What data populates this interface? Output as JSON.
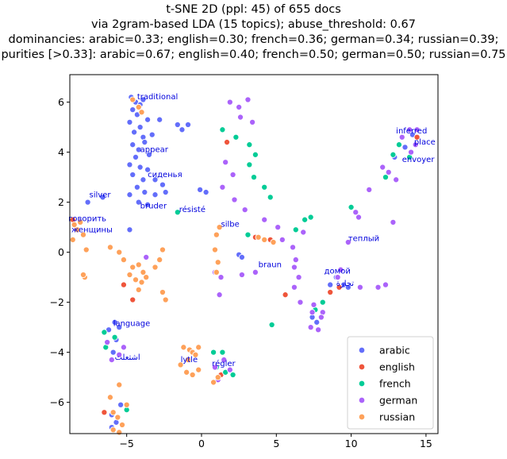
{
  "chart_data": {
    "type": "scatter",
    "title_lines": [
      "t-SNE 2D (ppl: 45) of 655 docs",
      "via 2gram-based LDA (15 topics); abuse_threshold: 0.67",
      "dominancies: arabic=0.33; english=0.30; french=0.36; german=0.34; russian=0.39;",
      "purities [>0.33]: arabic=0.67; english=0.40; french=0.50; german=0.50; russian=0.75"
    ],
    "xlabel": "",
    "ylabel": "",
    "xlim": [
      -8.8,
      15.8
    ],
    "ylim": [
      -7.25,
      7.1
    ],
    "xticks": [
      -5,
      0,
      5,
      10,
      15
    ],
    "yticks": [
      -6,
      -4,
      -2,
      0,
      2,
      4,
      6
    ],
    "grid": false,
    "legend_position": "lower-right",
    "series": [
      {
        "name": "arabic",
        "color": "#636efa",
        "points": [
          [
            -4.7,
            6.2
          ],
          [
            -4.4,
            6.0
          ],
          [
            -4.1,
            5.9
          ],
          [
            -3.9,
            6.1
          ],
          [
            -4.6,
            5.7
          ],
          [
            -4.3,
            5.5
          ],
          [
            -3.6,
            5.3
          ],
          [
            -4.8,
            5.2
          ],
          [
            -4.1,
            5.0
          ],
          [
            -2.8,
            5.3
          ],
          [
            -4.5,
            4.8
          ],
          [
            -3.9,
            4.6
          ],
          [
            -3.3,
            4.7
          ],
          [
            -4.6,
            4.3
          ],
          [
            -4.2,
            4.1
          ],
          [
            -3.8,
            4.4
          ],
          [
            -4.4,
            3.8
          ],
          [
            -3.5,
            3.9
          ],
          [
            -4.8,
            3.5
          ],
          [
            -4.1,
            3.4
          ],
          [
            -3.6,
            3.3
          ],
          [
            -4.6,
            3.1
          ],
          [
            -3.9,
            2.9
          ],
          [
            -3.1,
            2.9
          ],
          [
            -4.3,
            2.6
          ],
          [
            -3.8,
            2.4
          ],
          [
            -2.6,
            2.7
          ],
          [
            -4.8,
            2.3
          ],
          [
            -3.1,
            2.3
          ],
          [
            -2.4,
            2.4
          ],
          [
            -4.2,
            2.0
          ],
          [
            -3.6,
            1.9
          ],
          [
            -1.6,
            5.1
          ],
          [
            -1.3,
            4.9
          ],
          [
            -0.9,
            5.1
          ],
          [
            -0.1,
            2.5
          ],
          [
            0.3,
            2.4
          ],
          [
            -6.6,
            2.2
          ],
          [
            -7.6,
            2.0
          ],
          [
            -4.8,
            0.9
          ],
          [
            -5.8,
            -2.8
          ],
          [
            -5.5,
            -3.0
          ],
          [
            -6.2,
            -3.1
          ],
          [
            -5.7,
            -3.5
          ],
          [
            -5.9,
            -4.0
          ],
          [
            -5.4,
            -6.1
          ],
          [
            -6.0,
            -6.5
          ],
          [
            -5.7,
            -6.8
          ],
          [
            -6.0,
            -7.0
          ],
          [
            7.4,
            -2.6
          ],
          [
            7.7,
            -2.8
          ],
          [
            9.0,
            -1.0
          ],
          [
            9.5,
            -1.3
          ],
          [
            13.6,
            4.2
          ],
          [
            14.1,
            4.7
          ],
          [
            12.9,
            3.8
          ],
          [
            2.5,
            -0.1
          ],
          [
            2.7,
            -0.2
          ],
          [
            8.6,
            -1.3
          ],
          [
            9.8,
            -1.4
          ]
        ]
      },
      {
        "name": "english",
        "color": "#ef553b",
        "points": [
          [
            -5.2,
            -1.3
          ],
          [
            -4.6,
            -1.9
          ],
          [
            1.7,
            4.4
          ],
          [
            3.6,
            0.6
          ],
          [
            4.6,
            0.5
          ],
          [
            5.6,
            -1.7
          ],
          [
            1.3,
            -4.9
          ],
          [
            -6.5,
            -6.4
          ],
          [
            14.4,
            4.6
          ],
          [
            8.6,
            -1.6
          ],
          [
            -8.6,
            1.3
          ],
          [
            9.2,
            -1.4
          ]
        ]
      },
      {
        "name": "french",
        "color": "#00cc96",
        "points": [
          [
            1.4,
            4.9
          ],
          [
            2.3,
            4.6
          ],
          [
            3.2,
            4.3
          ],
          [
            3.6,
            3.9
          ],
          [
            3.2,
            3.5
          ],
          [
            3.5,
            3.0
          ],
          [
            4.2,
            2.6
          ],
          [
            4.6,
            2.2
          ],
          [
            6.9,
            1.3
          ],
          [
            7.3,
            1.4
          ],
          [
            6.3,
            0.9
          ],
          [
            10.0,
            1.8
          ],
          [
            12.8,
            3.9
          ],
          [
            13.2,
            4.3
          ],
          [
            13.9,
            3.8
          ],
          [
            12.3,
            3.0
          ],
          [
            3.1,
            0.7
          ],
          [
            -1.6,
            1.6
          ],
          [
            0.8,
            -4.0
          ],
          [
            1.4,
            -4.0
          ],
          [
            1.0,
            -4.6
          ],
          [
            1.6,
            -4.8
          ],
          [
            -6.5,
            -3.2
          ],
          [
            -5.8,
            -3.4
          ],
          [
            -6.4,
            -3.8
          ],
          [
            -5.0,
            -6.3
          ],
          [
            8.1,
            -2.0
          ],
          [
            7.6,
            -2.3
          ],
          [
            4.7,
            -2.9
          ],
          [
            2.1,
            -4.9
          ]
        ]
      },
      {
        "name": "german",
        "color": "#ab63fa",
        "points": [
          [
            1.9,
            6.0
          ],
          [
            2.5,
            5.8
          ],
          [
            3.1,
            6.1
          ],
          [
            2.6,
            5.4
          ],
          [
            3.4,
            5.2
          ],
          [
            1.6,
            3.6
          ],
          [
            2.1,
            3.1
          ],
          [
            1.4,
            2.6
          ],
          [
            2.2,
            2.1
          ],
          [
            2.9,
            1.7
          ],
          [
            4.2,
            1.3
          ],
          [
            5.1,
            1.0
          ],
          [
            6.8,
            0.8
          ],
          [
            5.4,
            0.5
          ],
          [
            6.1,
            0.2
          ],
          [
            6.3,
            -0.3
          ],
          [
            6.2,
            -0.6
          ],
          [
            6.5,
            -1.0
          ],
          [
            6.2,
            -1.4
          ],
          [
            6.6,
            -2.0
          ],
          [
            7.5,
            -2.1
          ],
          [
            8.1,
            -2.4
          ],
          [
            7.3,
            -3.0
          ],
          [
            7.8,
            -3.1
          ],
          [
            10.3,
            1.6
          ],
          [
            10.5,
            1.4
          ],
          [
            11.2,
            2.5
          ],
          [
            12.1,
            3.4
          ],
          [
            12.5,
            3.2
          ],
          [
            13.0,
            2.9
          ],
          [
            13.4,
            4.6
          ],
          [
            13.9,
            4.9
          ],
          [
            14.4,
            4.9
          ],
          [
            14.3,
            4.3
          ],
          [
            14.0,
            4.0
          ],
          [
            12.8,
            1.2
          ],
          [
            11.8,
            -1.4
          ],
          [
            12.3,
            -1.3
          ],
          [
            10.6,
            -1.4
          ],
          [
            9.1,
            -1.0
          ],
          [
            9.8,
            0.4
          ],
          [
            -3.7,
            -0.2
          ],
          [
            -5.2,
            -3.8
          ],
          [
            -5.5,
            -4.1
          ],
          [
            -6.0,
            -4.3
          ],
          [
            -6.3,
            -3.6
          ],
          [
            0.9,
            -0.8
          ],
          [
            1.3,
            -1.0
          ],
          [
            1.2,
            -1.7
          ],
          [
            2.7,
            -0.9
          ],
          [
            3.6,
            -0.8
          ],
          [
            1.5,
            -4.3
          ],
          [
            1.9,
            -4.7
          ],
          [
            1.1,
            -5.1
          ],
          [
            0.9,
            -4.6
          ],
          [
            9.3,
            -0.7
          ],
          [
            7.4,
            -2.4
          ],
          [
            8.0,
            -2.6
          ]
        ]
      },
      {
        "name": "russian",
        "color": "#fea15a",
        "points": [
          [
            -4.6,
            6.1
          ],
          [
            -4.2,
            5.8
          ],
          [
            -4.0,
            5.6
          ],
          [
            -8.5,
            1.1
          ],
          [
            -8.3,
            0.9
          ],
          [
            -8.1,
            1.2
          ],
          [
            -7.9,
            0.7
          ],
          [
            -8.6,
            0.5
          ],
          [
            -7.7,
            0.1
          ],
          [
            -6.1,
            0.2
          ],
          [
            -5.5,
            0.0
          ],
          [
            -5.2,
            -0.3
          ],
          [
            -4.6,
            -0.6
          ],
          [
            -4.2,
            -0.5
          ],
          [
            -3.9,
            -0.8
          ],
          [
            -4.8,
            -0.9
          ],
          [
            -4.4,
            -1.1
          ],
          [
            -4.0,
            -1.2
          ],
          [
            -4.2,
            -1.5
          ],
          [
            -3.7,
            -1.0
          ],
          [
            -2.6,
            0.1
          ],
          [
            -2.8,
            -0.3
          ],
          [
            -3.1,
            -0.6
          ],
          [
            -2.6,
            -1.6
          ],
          [
            -2.4,
            -1.9
          ],
          [
            1.2,
            1.0
          ],
          [
            1.0,
            0.7
          ],
          [
            0.9,
            0.1
          ],
          [
            1.1,
            -0.4
          ],
          [
            1.0,
            -0.8
          ],
          [
            3.8,
            0.6
          ],
          [
            4.2,
            0.5
          ],
          [
            4.8,
            0.4
          ],
          [
            -1.2,
            -3.8
          ],
          [
            -0.8,
            -3.9
          ],
          [
            -0.6,
            -4.0
          ],
          [
            -0.9,
            -4.3
          ],
          [
            -0.4,
            -4.1
          ],
          [
            -0.2,
            -3.8
          ],
          [
            -1.4,
            -4.5
          ],
          [
            -1.0,
            -4.8
          ],
          [
            -0.6,
            -4.9
          ],
          [
            -0.2,
            -4.7
          ],
          [
            1.1,
            -5.0
          ],
          [
            0.8,
            -5.2
          ],
          [
            -5.9,
            -6.4
          ],
          [
            -5.6,
            -6.6
          ],
          [
            -5.3,
            -6.9
          ],
          [
            -5.9,
            -7.1
          ],
          [
            -5.5,
            -7.2
          ],
          [
            -5.0,
            -6.1
          ],
          [
            -6.1,
            -5.8
          ],
          [
            -5.5,
            -5.3
          ],
          [
            -7.8,
            -1.0
          ],
          [
            -7.9,
            -0.9
          ]
        ]
      }
    ],
    "annotations": [
      {
        "text": "traditional",
        "x": -4.3,
        "y": 6.12
      },
      {
        "text": "appear",
        "x": -4.1,
        "y": 4.0
      },
      {
        "text": "сиденья",
        "x": -3.6,
        "y": 3.0
      },
      {
        "text": "silver",
        "x": -7.5,
        "y": 2.2
      },
      {
        "text": "bruder",
        "x": -4.1,
        "y": 1.75
      },
      {
        "text": "résisté",
        "x": -1.5,
        "y": 1.6
      },
      {
        "text": "говорить",
        "x": -8.9,
        "y": 1.25
      },
      {
        "text": "женщины",
        "x": -8.7,
        "y": 0.8
      },
      {
        "text": "silbe",
        "x": 1.3,
        "y": 1.02
      },
      {
        "text": "inferred",
        "x": 13.0,
        "y": 4.75
      },
      {
        "text": "place",
        "x": 14.2,
        "y": 4.3
      },
      {
        "text": "envoyer",
        "x": 13.4,
        "y": 3.6
      },
      {
        "text": "теплый",
        "x": 9.8,
        "y": 0.45
      },
      {
        "text": "braun",
        "x": 3.8,
        "y": -0.6
      },
      {
        "text": "домой",
        "x": 8.2,
        "y": -0.85
      },
      {
        "text": "تجارة",
        "x": 9.0,
        "y": -1.35
      },
      {
        "text": "language",
        "x": -5.9,
        "y": -2.95
      },
      {
        "text": "اشتعلت",
        "x": -5.8,
        "y": -4.3
      },
      {
        "text": "lytle",
        "x": -1.4,
        "y": -4.4
      },
      {
        "text": "régler",
        "x": 0.7,
        "y": -4.55
      }
    ]
  }
}
